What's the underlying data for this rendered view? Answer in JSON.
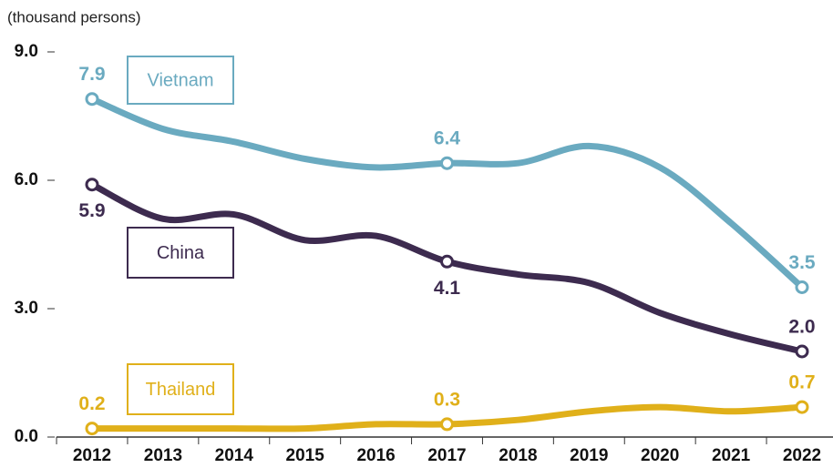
{
  "chart_data": {
    "type": "line",
    "y_label": "(thousand persons)",
    "categories": [
      "2012",
      "2013",
      "2014",
      "2015",
      "2016",
      "2017",
      "2018",
      "2019",
      "2020",
      "2021",
      "2022"
    ],
    "series": [
      {
        "name": "Vietnam",
        "color": "#6aaac0",
        "values": [
          7.9,
          7.2,
          6.9,
          6.5,
          6.3,
          6.4,
          6.4,
          6.8,
          6.3,
          5.0,
          3.5
        ],
        "value_labels": [
          "7.9",
          null,
          null,
          null,
          null,
          "6.4",
          null,
          null,
          null,
          null,
          "3.5"
        ]
      },
      {
        "name": "China",
        "color": "#3d2b4f",
        "values": [
          5.9,
          5.1,
          5.2,
          4.6,
          4.7,
          4.1,
          3.8,
          3.6,
          2.9,
          2.4,
          2.0
        ],
        "value_labels": [
          "5.9",
          null,
          null,
          null,
          null,
          "4.1",
          null,
          null,
          null,
          null,
          "2.0"
        ]
      },
      {
        "name": "Thailand",
        "color": "#e0b01a",
        "values": [
          0.2,
          0.2,
          0.2,
          0.2,
          0.3,
          0.3,
          0.4,
          0.6,
          0.7,
          0.6,
          0.7
        ],
        "value_labels": [
          "0.2",
          null,
          null,
          null,
          null,
          "0.3",
          null,
          null,
          null,
          null,
          "0.7"
        ]
      }
    ],
    "ylim": [
      0,
      9
    ],
    "yticks": [
      {
        "value": 0,
        "label": "0.0"
      },
      {
        "value": 3,
        "label": "3.0"
      },
      {
        "value": 6,
        "label": "6.0"
      },
      {
        "value": 9,
        "label": "9.0"
      }
    ],
    "grid": false
  }
}
